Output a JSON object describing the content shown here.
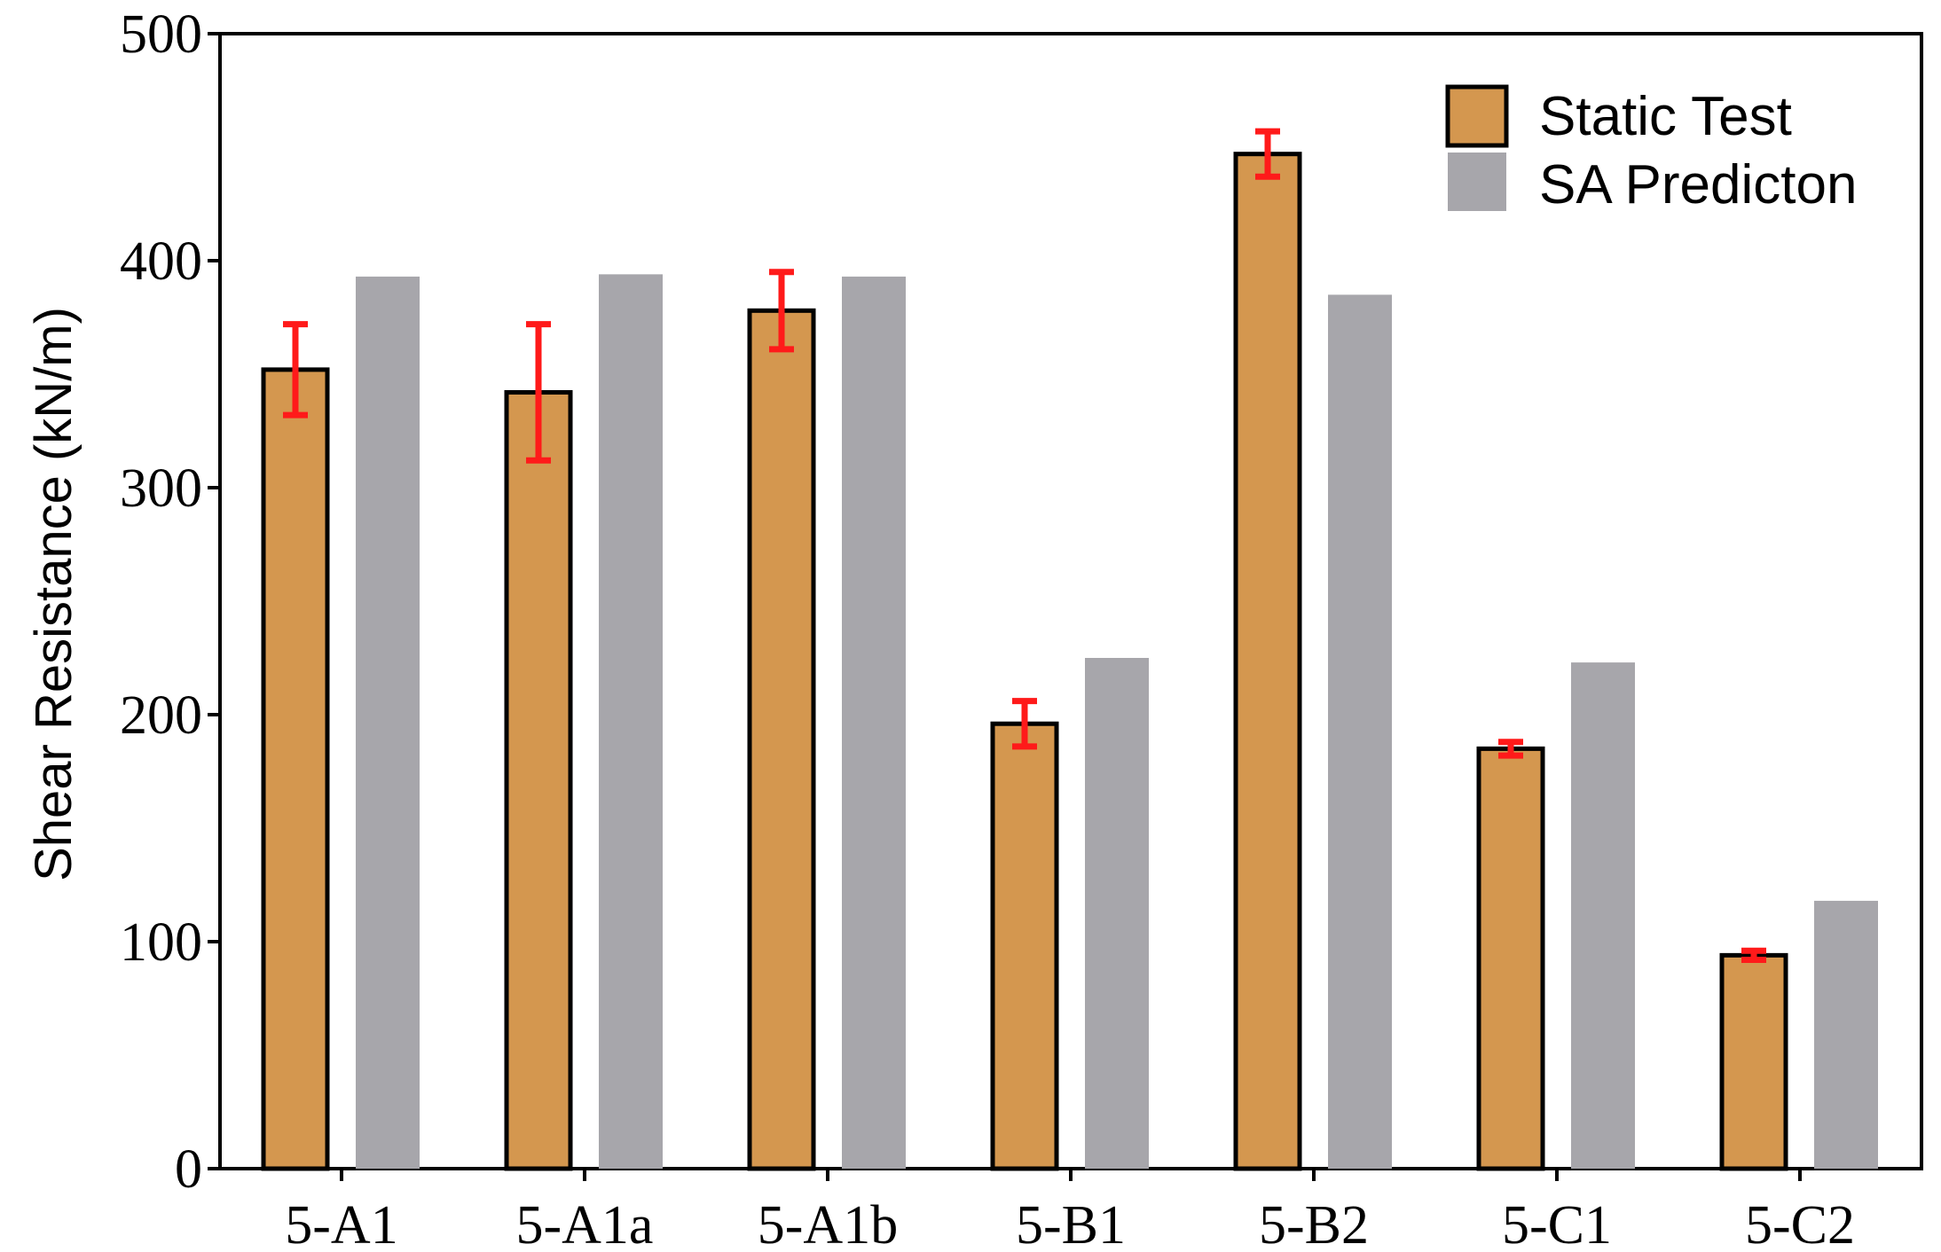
{
  "chart_data": {
    "type": "bar",
    "title": "",
    "xlabel": "",
    "ylabel": "Shear Resistance (kN/m)",
    "ylim": [
      0,
      500
    ],
    "yticks": [
      "0",
      "100",
      "200",
      "300",
      "400",
      "500"
    ],
    "grid": false,
    "legend_position": "top-right",
    "categories": [
      "5-A1",
      "5-A1a",
      "5-A1b",
      "5-B1",
      "5-B2",
      "5-C1",
      "5-C2"
    ],
    "series": [
      {
        "name": "Static Test",
        "color": "#D4974F",
        "edge_color": "#000000",
        "values": [
          352,
          342,
          378,
          196,
          447,
          185,
          94
        ],
        "error_low": [
          20,
          30,
          17,
          10,
          10,
          3,
          2
        ],
        "error_high": [
          20,
          30,
          17,
          10,
          10,
          3,
          2
        ],
        "error_color": "#FF1A1A"
      },
      {
        "name": "SA Predicton",
        "color": "#A7A6AB",
        "values": [
          393,
          394,
          393,
          225,
          385,
          223,
          118
        ]
      }
    ]
  }
}
